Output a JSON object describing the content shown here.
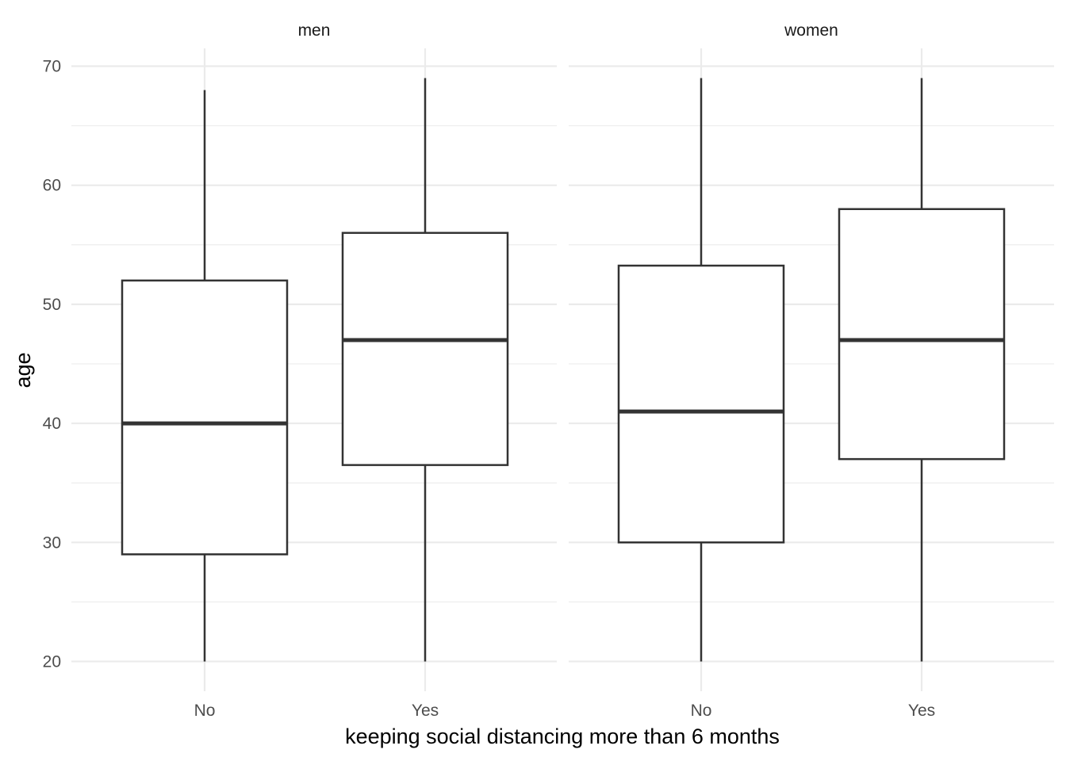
{
  "chart_data": {
    "type": "boxplot",
    "xlabel": "keeping social distancing more than 6 months",
    "ylabel": "age",
    "ylim": [
      17.5,
      71.5
    ],
    "y_ticks": [
      20,
      30,
      40,
      50,
      60,
      70
    ],
    "y_minor_ticks": [
      25,
      35,
      45,
      55,
      65
    ],
    "grid": true,
    "categories": [
      "No",
      "Yes"
    ],
    "facets": [
      {
        "label": "men",
        "boxes": [
          {
            "category": "No",
            "min": 20,
            "q1": 29,
            "median": 40,
            "q3": 52,
            "max": 68
          },
          {
            "category": "Yes",
            "min": 20,
            "q1": 36.5,
            "median": 47,
            "q3": 56,
            "max": 69
          }
        ]
      },
      {
        "label": "women",
        "boxes": [
          {
            "category": "No",
            "min": 20,
            "q1": 30,
            "median": 41,
            "q3": 53.25,
            "max": 69
          },
          {
            "category": "Yes",
            "min": 20,
            "q1": 37,
            "median": 47,
            "q3": 58,
            "max": 69
          }
        ]
      }
    ],
    "colors": {
      "box_fill": "#ffffff",
      "box_stroke": "#333333",
      "grid": "#ebebeb"
    }
  }
}
